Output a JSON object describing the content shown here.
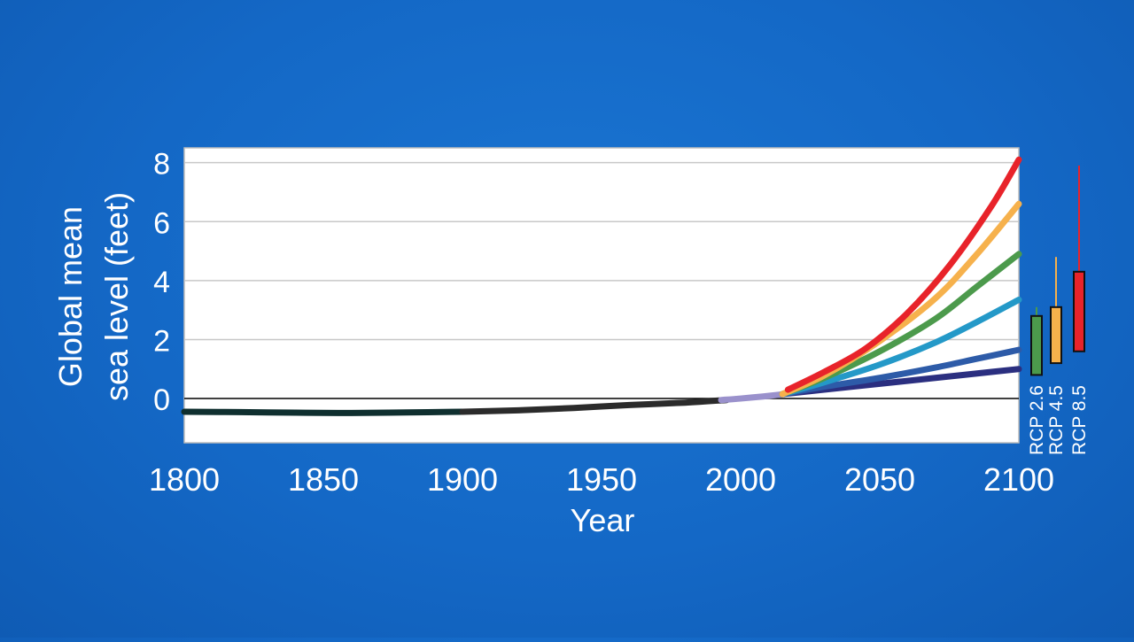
{
  "colors": {
    "background": "#1468c6",
    "plot_background": "#ffffff",
    "grid": "#c8c8c8",
    "zero_line": "#000000",
    "text": "#ffffff"
  },
  "chart_data": {
    "type": "line",
    "title": "",
    "xlabel": "Year",
    "ylabel_lines": [
      "Global mean",
      "sea level (feet)"
    ],
    "xlim": [
      1800,
      2100
    ],
    "ylim": [
      -1.5,
      8.5
    ],
    "xticks": [
      1800,
      1850,
      1900,
      1950,
      2000,
      2050,
      2100
    ],
    "yticks": [
      0,
      2,
      4,
      6,
      8
    ],
    "grid": true,
    "series": [
      {
        "color": "#0f2f2f",
        "x": [
          1800,
          1820,
          1840,
          1860,
          1880,
          1900
        ],
        "y": [
          -0.45,
          -0.46,
          -0.48,
          -0.49,
          -0.47,
          -0.45
        ]
      },
      {
        "color": "#2b2b2b",
        "x": [
          1900,
          1920,
          1940,
          1960,
          1980,
          1995
        ],
        "y": [
          -0.45,
          -0.4,
          -0.32,
          -0.22,
          -0.14,
          -0.05
        ]
      },
      {
        "color": "#9a91cc",
        "x": [
          1993,
          2000,
          2008,
          2015
        ],
        "y": [
          -0.05,
          0.0,
          0.07,
          0.14
        ]
      },
      {
        "color": "#2b2f80",
        "x": [
          2015,
          2030,
          2050,
          2070,
          2085,
          2100
        ],
        "y": [
          0.15,
          0.3,
          0.5,
          0.7,
          0.85,
          1.0
        ]
      },
      {
        "color": "#2d5ba8",
        "x": [
          2015,
          2030,
          2050,
          2070,
          2085,
          2100
        ],
        "y": [
          0.15,
          0.4,
          0.7,
          1.05,
          1.35,
          1.65
        ]
      },
      {
        "color": "#2499c8",
        "x": [
          2015,
          2030,
          2050,
          2070,
          2085,
          2100
        ],
        "y": [
          0.15,
          0.55,
          1.15,
          1.9,
          2.6,
          3.35
        ]
      },
      {
        "color": "#4c9a4c",
        "x": [
          2015,
          2030,
          2050,
          2070,
          2085,
          2100
        ],
        "y": [
          0.15,
          0.7,
          1.6,
          2.7,
          3.8,
          4.9
        ]
      },
      {
        "color": "#f6b14c",
        "x": [
          2015,
          2030,
          2050,
          2070,
          2085,
          2100
        ],
        "y": [
          0.15,
          0.78,
          1.95,
          3.4,
          4.9,
          6.6
        ]
      },
      {
        "color": "#e8232a",
        "x": [
          2017,
          2030,
          2045,
          2060,
          2075,
          2090,
          2100
        ],
        "y": [
          0.3,
          0.9,
          1.7,
          2.9,
          4.5,
          6.5,
          8.1
        ]
      }
    ],
    "ranges": [
      {
        "label": "RCP 2.6",
        "color": "#4c9a4c",
        "low": 0.8,
        "high": 2.8,
        "whisker_high": 3.1
      },
      {
        "label": "RCP 4.5",
        "color": "#f6b14c",
        "low": 1.2,
        "high": 3.1,
        "whisker_high": 4.8
      },
      {
        "label": "RCP 8.5",
        "color": "#e8232a",
        "low": 1.6,
        "high": 4.3,
        "whisker_high": 7.9
      }
    ]
  }
}
